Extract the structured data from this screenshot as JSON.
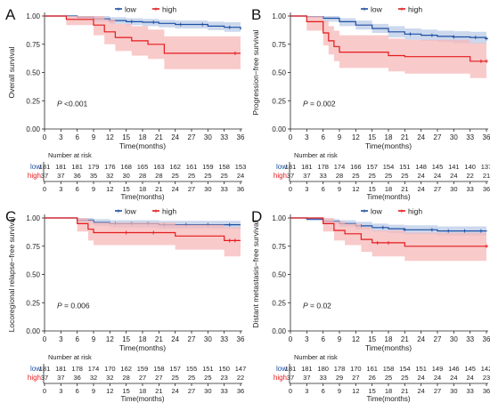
{
  "figure": {
    "legend_labels": [
      "low",
      "high"
    ],
    "x_axis_label": "Time(months)",
    "risk_table_title": "Number at risk",
    "p_prefix": "P",
    "colors": {
      "low": "#1f4fa3",
      "high": "#e41a1c",
      "low_ci": "#b6c8e6",
      "high_ci": "#f7b8b8"
    }
  },
  "chart_data": [
    {
      "panel": "A",
      "type": "line",
      "ylabel": "Overall survival",
      "p_value": "<0.001",
      "xlim": [
        0,
        36
      ],
      "ylim": [
        0,
        1
      ],
      "x_ticks": [
        0,
        3,
        6,
        9,
        12,
        15,
        18,
        21,
        24,
        27,
        30,
        33,
        36
      ],
      "y_ticks": [
        "0.00",
        "0.25",
        "0.50",
        "0.75",
        "1.00"
      ],
      "series": [
        {
          "name": "low",
          "steps": [
            [
              0,
              1.0
            ],
            [
              6,
              0.99
            ],
            [
              9,
              0.975
            ],
            [
              12,
              0.96
            ],
            [
              15,
              0.95
            ],
            [
              18,
              0.945
            ],
            [
              21,
              0.935
            ],
            [
              24,
              0.925
            ],
            [
              30,
              0.91
            ],
            [
              33,
              0.9
            ],
            [
              36,
              0.88
            ]
          ],
          "upper": [
            1.0,
            1.0,
            1.0,
            0.99,
            0.98,
            0.975,
            0.965,
            0.96,
            0.95,
            0.945,
            0.935
          ],
          "lower": [
            1.0,
            0.975,
            0.95,
            0.93,
            0.92,
            0.91,
            0.9,
            0.89,
            0.875,
            0.86,
            0.84
          ],
          "censor": [
            12,
            16,
            20,
            25,
            29,
            34
          ],
          "risk": [
            181,
            181,
            181,
            179,
            176,
            168,
            165,
            163,
            162,
            161,
            159,
            158,
            153
          ]
        },
        {
          "name": "high",
          "steps": [
            [
              0,
              1.0
            ],
            [
              4,
              0.97
            ],
            [
              9,
              0.92
            ],
            [
              11,
              0.86
            ],
            [
              13,
              0.81
            ],
            [
              16,
              0.78
            ],
            [
              19,
              0.75
            ],
            [
              22,
              0.67
            ],
            [
              36,
              0.67
            ]
          ],
          "upper": [
            1.0,
            1.0,
            1.0,
            0.97,
            0.93,
            0.91,
            0.88,
            0.82,
            0.82
          ],
          "lower": [
            1.0,
            0.92,
            0.83,
            0.75,
            0.69,
            0.65,
            0.62,
            0.53,
            0.53
          ],
          "censor": [
            35
          ],
          "risk": [
            37,
            37,
            36,
            35,
            32,
            30,
            28,
            28,
            25,
            25,
            25,
            25,
            24
          ]
        }
      ]
    },
    {
      "panel": "B",
      "type": "line",
      "ylabel": "Progression−free survival",
      "p_value": "= 0.002",
      "xlim": [
        0,
        36
      ],
      "ylim": [
        0,
        1
      ],
      "x_ticks": [
        0,
        3,
        6,
        9,
        12,
        15,
        18,
        21,
        24,
        27,
        30,
        33,
        36
      ],
      "y_ticks": [
        "0.00",
        "0.25",
        "0.50",
        "0.75",
        "1.00"
      ],
      "series": [
        {
          "name": "low",
          "steps": [
            [
              0,
              1.0
            ],
            [
              3,
              0.995
            ],
            [
              6,
              0.98
            ],
            [
              9,
              0.95
            ],
            [
              12,
              0.92
            ],
            [
              15,
              0.89
            ],
            [
              18,
              0.86
            ],
            [
              21,
              0.84
            ],
            [
              24,
              0.83
            ],
            [
              27,
              0.82
            ],
            [
              30,
              0.815
            ],
            [
              33,
              0.81
            ],
            [
              36,
              0.8
            ]
          ],
          "upper": [
            1.0,
            1.0,
            1.0,
            0.98,
            0.96,
            0.93,
            0.91,
            0.89,
            0.88,
            0.87,
            0.865,
            0.86,
            0.85
          ],
          "lower": [
            1.0,
            0.985,
            0.95,
            0.91,
            0.88,
            0.85,
            0.81,
            0.79,
            0.78,
            0.77,
            0.76,
            0.755,
            0.745
          ],
          "censor": [
            22,
            26,
            30,
            34,
            36
          ],
          "risk": [
            181,
            181,
            178,
            174,
            166,
            157,
            154,
            151,
            148,
            145,
            141,
            140,
            137
          ]
        },
        {
          "name": "high",
          "steps": [
            [
              0,
              1.0
            ],
            [
              3,
              0.95
            ],
            [
              6,
              0.85
            ],
            [
              7,
              0.78
            ],
            [
              8,
              0.73
            ],
            [
              9,
              0.68
            ],
            [
              18,
              0.65
            ],
            [
              21,
              0.64
            ],
            [
              33,
              0.6
            ],
            [
              36,
              0.6
            ]
          ],
          "upper": [
            1.0,
            1.0,
            0.96,
            0.91,
            0.87,
            0.83,
            0.8,
            0.79,
            0.76,
            0.76
          ],
          "lower": [
            1.0,
            0.87,
            0.74,
            0.66,
            0.6,
            0.54,
            0.51,
            0.49,
            0.45,
            0.45
          ],
          "censor": [
            35,
            36
          ],
          "risk": [
            37,
            37,
            33,
            28,
            25,
            25,
            25,
            25,
            24,
            24,
            24,
            22,
            21
          ]
        }
      ]
    },
    {
      "panel": "C",
      "type": "line",
      "ylabel": "Locoregional relapse−free survival",
      "p_value": "= 0.006",
      "xlim": [
        0,
        36
      ],
      "ylim": [
        0,
        1
      ],
      "x_ticks": [
        0,
        3,
        6,
        9,
        12,
        15,
        18,
        21,
        24,
        27,
        30,
        33,
        36
      ],
      "y_ticks": [
        "0.00",
        "0.25",
        "0.50",
        "0.75",
        "1.00"
      ],
      "series": [
        {
          "name": "low",
          "steps": [
            [
              0,
              1.0
            ],
            [
              6,
              0.98
            ],
            [
              9,
              0.96
            ],
            [
              12,
              0.95
            ],
            [
              21,
              0.94
            ],
            [
              36,
              0.94
            ]
          ],
          "upper": [
            1.0,
            1.0,
            0.99,
            0.98,
            0.975,
            0.975
          ],
          "lower": [
            1.0,
            0.96,
            0.93,
            0.915,
            0.905,
            0.905
          ],
          "censor": [
            13,
            16,
            19,
            22,
            26,
            30,
            34
          ],
          "risk": [
            181,
            181,
            178,
            174,
            170,
            162,
            159,
            158,
            157,
            155,
            151,
            150,
            147
          ]
        },
        {
          "name": "high",
          "steps": [
            [
              0,
              1.0
            ],
            [
              6,
              0.95
            ],
            [
              8,
              0.9
            ],
            [
              9,
              0.87
            ],
            [
              21,
              0.87
            ],
            [
              24,
              0.84
            ],
            [
              33,
              0.8
            ],
            [
              36,
              0.8
            ]
          ],
          "upper": [
            1.0,
            1.0,
            0.98,
            0.96,
            0.96,
            0.94,
            0.92,
            0.92
          ],
          "lower": [
            1.0,
            0.88,
            0.8,
            0.76,
            0.76,
            0.72,
            0.66,
            0.66
          ],
          "censor": [
            15,
            20,
            34,
            35
          ],
          "risk": [
            37,
            37,
            36,
            32,
            32,
            28,
            27,
            27,
            25,
            25,
            25,
            23,
            22
          ]
        }
      ]
    },
    {
      "panel": "D",
      "type": "line",
      "ylabel": "Distant metastasis−free survival",
      "p_value": "= 0.02",
      "xlim": [
        0,
        36
      ],
      "ylim": [
        0,
        1
      ],
      "x_ticks": [
        0,
        3,
        6,
        9,
        12,
        15,
        18,
        21,
        24,
        27,
        30,
        33,
        36
      ],
      "y_ticks": [
        "0.00",
        "0.25",
        "0.50",
        "0.75",
        "1.00"
      ],
      "series": [
        {
          "name": "low",
          "steps": [
            [
              0,
              1.0
            ],
            [
              3,
              0.99
            ],
            [
              6,
              0.97
            ],
            [
              9,
              0.95
            ],
            [
              12,
              0.93
            ],
            [
              15,
              0.915
            ],
            [
              18,
              0.905
            ],
            [
              21,
              0.895
            ],
            [
              27,
              0.885
            ],
            [
              36,
              0.88
            ]
          ],
          "upper": [
            1.0,
            1.0,
            0.99,
            0.98,
            0.965,
            0.95,
            0.94,
            0.935,
            0.925,
            0.92
          ],
          "lower": [
            1.0,
            0.975,
            0.945,
            0.92,
            0.895,
            0.88,
            0.865,
            0.855,
            0.845,
            0.84
          ],
          "censor": [
            13,
            17,
            21,
            26,
            29,
            32,
            35
          ],
          "risk": [
            181,
            181,
            180,
            178,
            170,
            161,
            158,
            154,
            151,
            149,
            146,
            145,
            142
          ]
        },
        {
          "name": "high",
          "steps": [
            [
              0,
              1.0
            ],
            [
              6,
              0.95
            ],
            [
              8,
              0.89
            ],
            [
              10,
              0.86
            ],
            [
              13,
              0.81
            ],
            [
              15,
              0.78
            ],
            [
              21,
              0.75
            ],
            [
              36,
              0.75
            ]
          ],
          "upper": [
            1.0,
            1.0,
            0.97,
            0.95,
            0.92,
            0.89,
            0.87,
            0.87
          ],
          "lower": [
            1.0,
            0.88,
            0.8,
            0.76,
            0.7,
            0.66,
            0.62,
            0.62
          ],
          "censor": [
            16,
            18,
            36
          ],
          "risk": [
            37,
            37,
            33,
            29,
            27,
            26,
            25,
            25,
            24,
            24,
            24,
            24,
            23
          ]
        }
      ]
    }
  ]
}
